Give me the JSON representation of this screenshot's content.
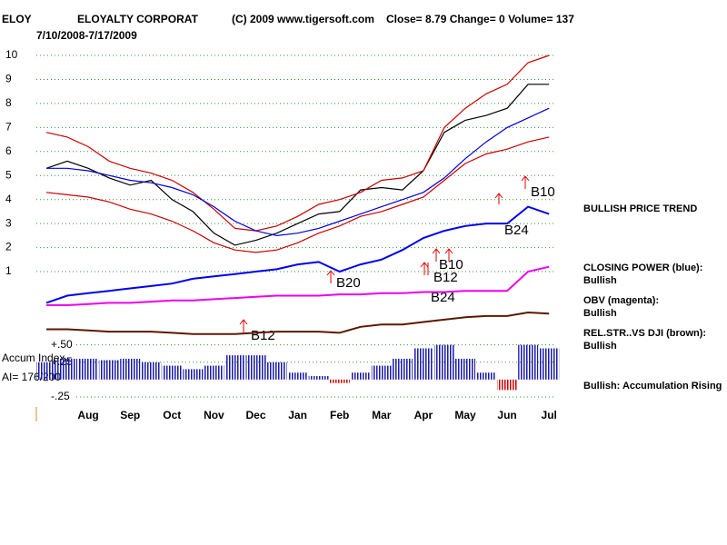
{
  "header": {
    "symbol": "ELOY",
    "company": "ELOYALTY CORPORAT",
    "copyright": "(C) 2009 www.tigersoft.com",
    "quote": "Close=  8.79  Change= 0 Volume= 137",
    "range": "7/10/2008-7/17/2009"
  },
  "notes": [
    "BULLISH PRICE TREND",
    "Bullish: Accumulation Rising"
  ],
  "signals": [
    "B10",
    "B24",
    "B10",
    "B12",
    "B24",
    "B20",
    "B12"
  ],
  "chart_data": [
    {
      "type": "line",
      "categories": [
        null,
        null,
        "Aug",
        null,
        "Sep",
        null,
        "Oct",
        null,
        "Nov",
        null,
        "Dec",
        null,
        "Jan",
        null,
        "Feb",
        null,
        "Mar",
        null,
        "Apr",
        null,
        "May",
        null,
        "Jun",
        null,
        "Jul"
      ],
      "ylim": [
        -3.5,
        11
      ],
      "yticks": [
        1,
        2,
        3,
        4,
        5,
        6,
        7,
        8,
        9,
        10
      ],
      "grid": true,
      "grid_color": "#2a9a2a",
      "series": [
        {
          "color": "#000000",
          "values": [
            5.3,
            5.6,
            5.3,
            4.9,
            4.6,
            4.8,
            4.0,
            3.5,
            2.6,
            2.1,
            2.3,
            2.6,
            3.0,
            3.4,
            3.5,
            4.4,
            4.5,
            4.4,
            5.2,
            6.8,
            7.3,
            7.5,
            7.8,
            8.8,
            8.8
          ]
        },
        {
          "color": "#cc0000",
          "values": [
            6.8,
            6.6,
            6.2,
            5.6,
            5.3,
            5.1,
            4.8,
            4.3,
            3.6,
            2.8,
            2.7,
            2.9,
            3.3,
            3.8,
            4.0,
            4.3,
            4.8,
            4.9,
            5.2,
            7.0,
            7.8,
            8.4,
            8.8,
            9.7,
            10.0
          ]
        },
        {
          "color": "#cc0000",
          "values": [
            4.3,
            4.2,
            4.1,
            3.9,
            3.6,
            3.4,
            3.1,
            2.7,
            2.2,
            1.9,
            1.8,
            1.9,
            2.2,
            2.6,
            2.9,
            3.3,
            3.5,
            3.8,
            4.1,
            4.8,
            5.5,
            5.9,
            6.1,
            6.4,
            6.6
          ]
        },
        {
          "color": "#0000dd",
          "values": [
            5.3,
            5.3,
            5.2,
            5.0,
            4.8,
            4.7,
            4.5,
            4.2,
            3.7,
            3.1,
            2.7,
            2.5,
            2.6,
            2.8,
            3.1,
            3.4,
            3.7,
            4.0,
            4.3,
            4.9,
            5.7,
            6.4,
            7.0,
            7.4,
            7.8
          ]
        },
        {
          "name": "CLOSING POWER (blue):",
          "status": "Bullish",
          "color": "#0000ee",
          "values": [
            -0.3,
            0.0,
            0.1,
            0.2,
            0.3,
            0.4,
            0.5,
            0.7,
            0.8,
            0.9,
            1.0,
            1.1,
            1.3,
            1.4,
            1.0,
            1.3,
            1.5,
            1.9,
            2.4,
            2.7,
            2.9,
            3.0,
            3.0,
            3.7,
            3.4
          ]
        },
        {
          "name": "OBV (magenta):",
          "status": "Bullish",
          "color": "#ee00ee",
          "values": [
            -0.4,
            -0.4,
            -0.35,
            -0.3,
            -0.3,
            -0.25,
            -0.2,
            -0.2,
            -0.15,
            -0.1,
            -0.05,
            0,
            0,
            0,
            0.05,
            0.05,
            0.1,
            0.1,
            0.15,
            0.15,
            0.2,
            0.2,
            0.2,
            1.0,
            1.2
          ]
        },
        {
          "name": "REL.STR..VS DJI (brown):",
          "status": "Bullish",
          "color": "#5a1a00",
          "values": [
            -1.4,
            -1.4,
            -1.45,
            -1.5,
            -1.5,
            -1.5,
            -1.55,
            -1.6,
            -1.6,
            -1.6,
            -1.55,
            -1.5,
            -1.5,
            -1.5,
            -1.55,
            -1.3,
            -1.2,
            -1.2,
            -1.1,
            -1.0,
            -0.9,
            -0.85,
            -0.85,
            -0.7,
            -0.75
          ]
        }
      ]
    },
    {
      "type": "bar",
      "title": "Accum Index",
      "subtitle": "AI= 176/200",
      "ylim": [
        -0.3,
        0.6
      ],
      "yticks": [
        {
          "value": 0.5,
          "label": "+.50"
        },
        {
          "value": 0.25,
          "label": "+.25"
        },
        {
          "value": -0.25,
          "label": "-.25"
        }
      ],
      "grid": true,
      "grid_color": "#2a9a2a",
      "color": "#1a1aaa",
      "negative_color": "#cc0000",
      "values": [
        0.25,
        0.3,
        0.3,
        0.28,
        0.3,
        0.25,
        0.2,
        0.15,
        0.2,
        0.35,
        0.35,
        0.25,
        0.1,
        0.05,
        -0.05,
        0.1,
        0.2,
        0.3,
        0.45,
        0.5,
        0.3,
        0.1,
        -0.15,
        0.5,
        0.45
      ]
    }
  ]
}
